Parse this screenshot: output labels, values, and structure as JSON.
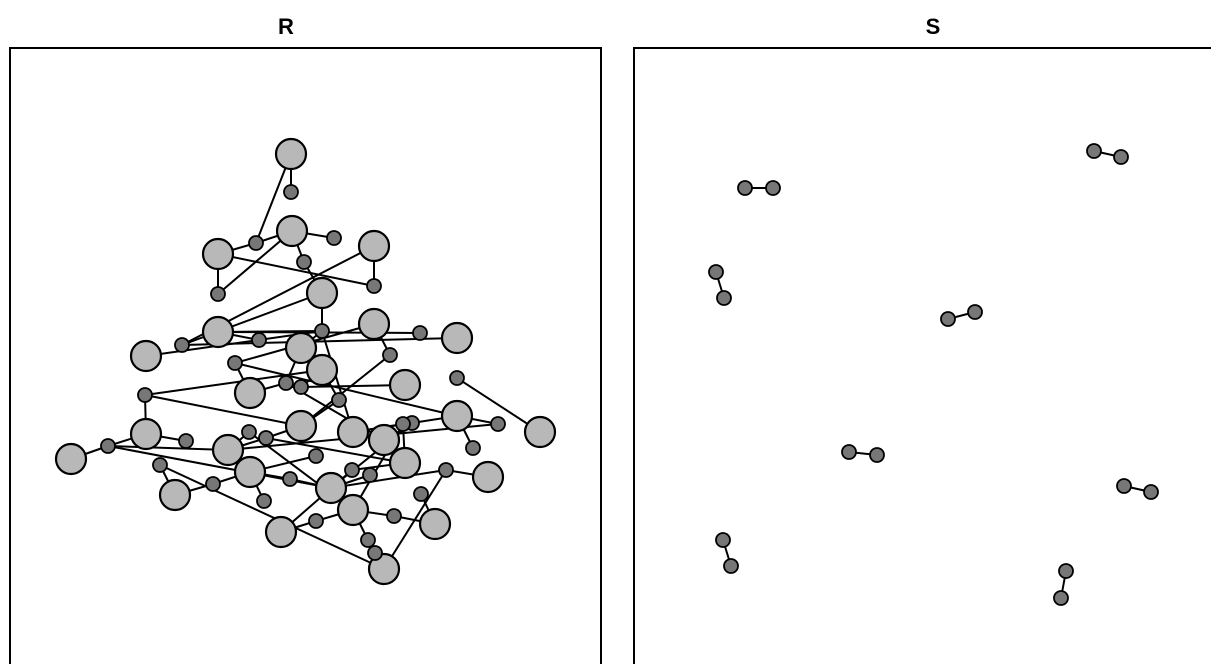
{
  "panels": {
    "left": {
      "label": "R"
    },
    "right": {
      "label": "S"
    }
  },
  "colors": {
    "large_atom": "#b8b8b8",
    "small_atom": "#777777",
    "outline": "#000000",
    "background": "#ffffff"
  }
}
